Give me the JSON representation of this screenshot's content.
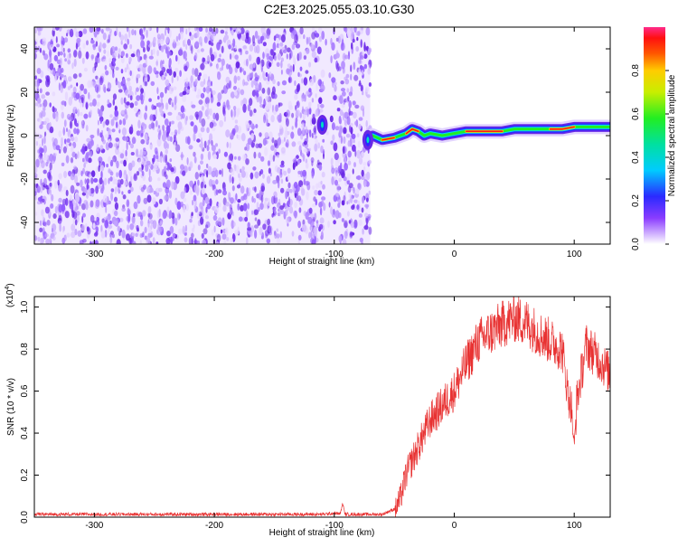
{
  "title": "C2E3.2025.055.03.10.G30",
  "chart_data": [
    {
      "type": "heatmap",
      "xlabel": "Height of straight line (km)",
      "ylabel": "Frequency (Hz)",
      "xlim": [
        -350,
        130
      ],
      "ylim": [
        -50,
        50
      ],
      "xticks": [
        -300,
        -200,
        -100,
        0,
        100
      ],
      "yticks": [
        -40,
        -20,
        0,
        20,
        40
      ],
      "colorbar": {
        "label": "Normalized spectral amplitude",
        "range": [
          0.0,
          1.0
        ],
        "ticks": [
          "0.0",
          "0.2",
          "0.4",
          "0.6",
          "0.8"
        ],
        "colormap": "rainbow"
      },
      "noise_region_x": [
        -350,
        -70
      ],
      "signal_trace": {
        "x": [
          -68,
          -60,
          -50,
          -40,
          -35,
          -30,
          -25,
          -20,
          -10,
          0,
          10,
          20,
          30,
          40,
          50,
          60,
          70,
          80,
          90,
          100,
          110,
          120,
          130
        ],
        "y": [
          0,
          -2,
          -1,
          1,
          3,
          2,
          0,
          1,
          0,
          1,
          2,
          2,
          2,
          2,
          3,
          3,
          3,
          3,
          3,
          4,
          4,
          4,
          4
        ]
      },
      "blobs": [
        {
          "x": -110,
          "y": 5
        },
        {
          "x": -72,
          "y": -2
        }
      ]
    },
    {
      "type": "line",
      "xlabel": "Height of straight line (km)",
      "ylabel": "SNR (10 * v/v)",
      "scale_label": "(x10",
      "scale_exp": "4",
      "scale_close": ")",
      "xlim": [
        -350,
        130
      ],
      "ylim": [
        0.0,
        1.05
      ],
      "xticks": [
        -300,
        -200,
        -100,
        0,
        100
      ],
      "yticks": [
        "0.0",
        "0.2",
        "0.4",
        "0.6",
        "0.8",
        "1.0"
      ],
      "color": "#e83232",
      "envelope": {
        "x": [
          -350,
          -110,
          -100,
          -90,
          -60,
          -50,
          -45,
          -40,
          -30,
          -20,
          -10,
          0,
          10,
          20,
          30,
          40,
          50,
          60,
          70,
          80,
          90,
          95,
          100,
          110,
          120,
          130
        ],
        "y": [
          0.015,
          0.015,
          0.02,
          0.015,
          0.015,
          0.04,
          0.1,
          0.22,
          0.35,
          0.48,
          0.55,
          0.62,
          0.75,
          0.86,
          0.9,
          0.94,
          0.97,
          0.95,
          0.9,
          0.86,
          0.82,
          0.6,
          0.5,
          0.84,
          0.78,
          0.7
        ]
      },
      "features": [
        {
          "x": -93,
          "y": 0.07
        },
        {
          "x": 100,
          "y": 0.36
        }
      ]
    }
  ]
}
